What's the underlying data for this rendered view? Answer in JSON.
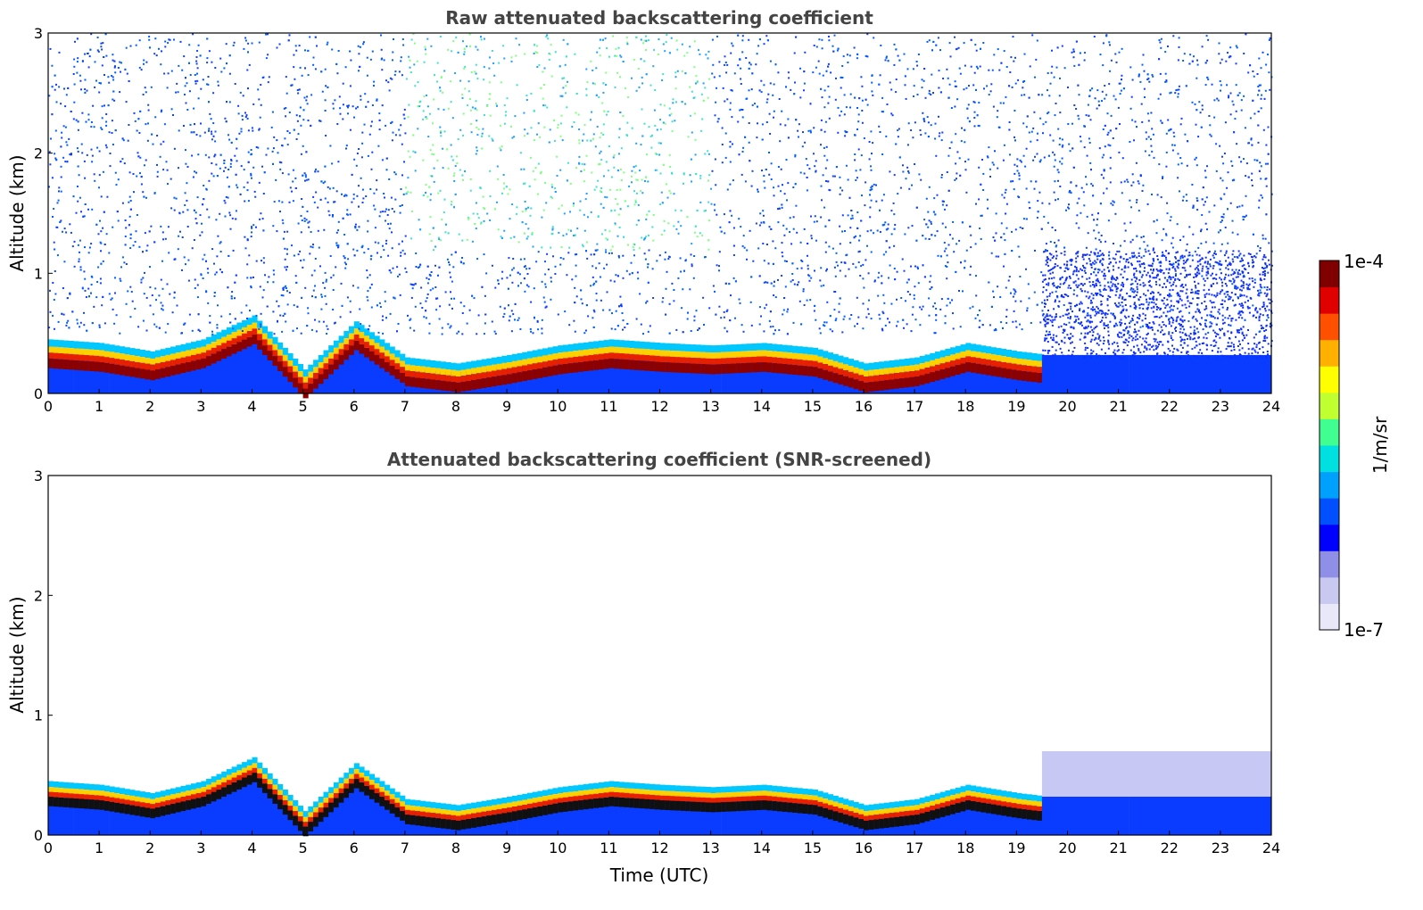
{
  "chart_data": [
    {
      "type": "heatmap",
      "title": "Raw attenuated backscattering coefficient",
      "xlabel": "",
      "ylabel": "Altitude (km)",
      "xlim": [
        0,
        24
      ],
      "ylim": [
        0,
        3
      ],
      "xticks": [
        "0",
        "1",
        "2",
        "3",
        "4",
        "5",
        "6",
        "7",
        "8",
        "9",
        "10",
        "11",
        "12",
        "13",
        "14",
        "15",
        "16",
        "17",
        "18",
        "19",
        "20",
        "21",
        "22",
        "23",
        "24"
      ],
      "yticks": [
        "0",
        "1",
        "2",
        "3"
      ],
      "screened": false,
      "layer_top_km": [
        [
          0,
          0.45
        ],
        [
          1,
          0.42
        ],
        [
          2,
          0.35
        ],
        [
          3,
          0.45
        ],
        [
          4,
          0.65
        ],
        [
          5,
          0.2
        ],
        [
          6,
          0.6
        ],
        [
          7,
          0.3
        ],
        [
          8,
          0.25
        ],
        [
          9,
          0.32
        ],
        [
          10,
          0.4
        ],
        [
          11,
          0.45
        ],
        [
          12,
          0.42
        ],
        [
          13,
          0.4
        ],
        [
          14,
          0.42
        ],
        [
          15,
          0.38
        ],
        [
          16,
          0.25
        ],
        [
          17,
          0.3
        ],
        [
          18,
          0.42
        ],
        [
          19,
          0.35
        ],
        [
          20,
          0.3
        ]
      ],
      "noise_level": "high"
    },
    {
      "type": "heatmap",
      "title": "Attenuated backscattering coefficient (SNR-screened)",
      "xlabel": "Time (UTC)",
      "ylabel": "Altitude (km)",
      "xlim": [
        0,
        24
      ],
      "ylim": [
        0,
        3
      ],
      "xticks": [
        "0",
        "1",
        "2",
        "3",
        "4",
        "5",
        "6",
        "7",
        "8",
        "9",
        "10",
        "11",
        "12",
        "13",
        "14",
        "15",
        "16",
        "17",
        "18",
        "19",
        "20",
        "21",
        "22",
        "23",
        "24"
      ],
      "yticks": [
        "0",
        "1",
        "2",
        "3"
      ],
      "screened": true,
      "noise_level": "low"
    }
  ],
  "colorbar": {
    "top_label": "1e-4",
    "bottom_label": "1e-7",
    "unit_label": "1/m/sr",
    "colors": [
      "#e8e8f8",
      "#c8c8f0",
      "#8f8fe8",
      "#0000ff",
      "#0050ff",
      "#00a0ff",
      "#00e0e0",
      "#40ff90",
      "#c0ff30",
      "#ffff00",
      "#ffb000",
      "#ff5000",
      "#e00000",
      "#800000"
    ]
  }
}
